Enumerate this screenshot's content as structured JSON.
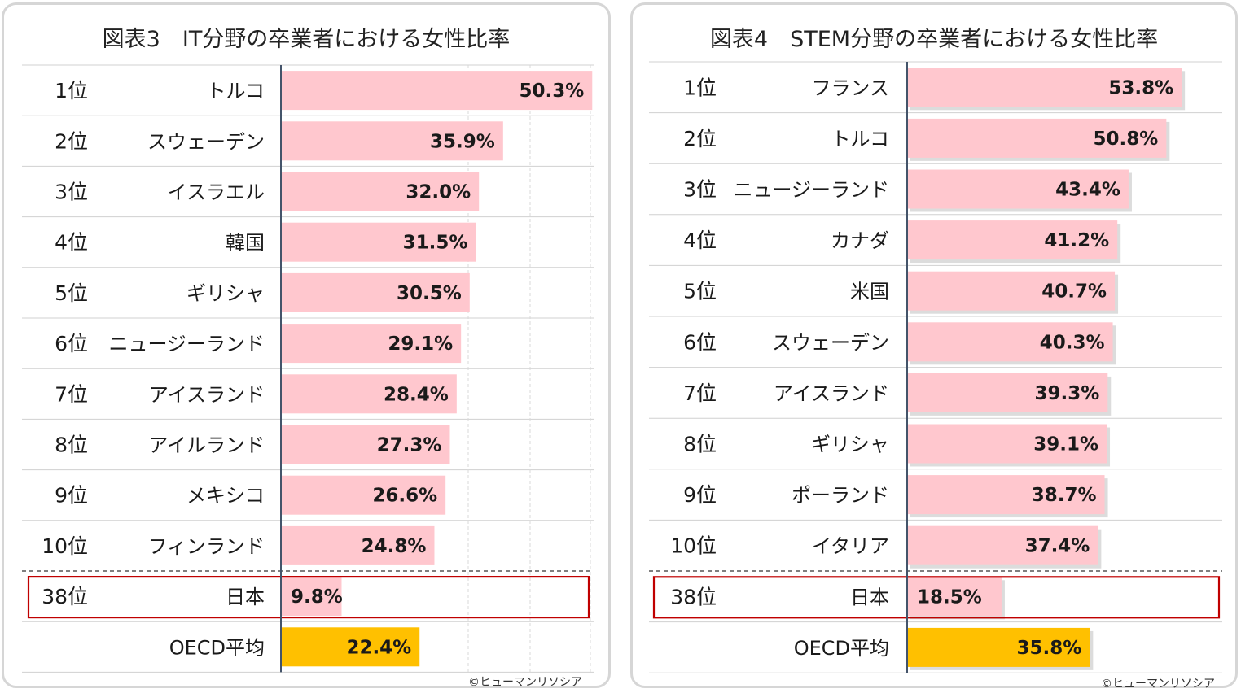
{
  "chart_data": [
    {
      "type": "bar",
      "title": "図表3　IT分野の卒業者における女性比率",
      "ranks": [
        "1位",
        "2位",
        "3位",
        "4位",
        "5位",
        "6位",
        "7位",
        "8位",
        "9位",
        "10位",
        "38位",
        ""
      ],
      "categories": [
        "トルコ",
        "スウェーデン",
        "イスラエル",
        "韓国",
        "ギリシャ",
        "ニュージーランド",
        "アイスランド",
        "アイルランド",
        "メキシコ",
        "フィンランド",
        "日本",
        "OECD平均"
      ],
      "values": [
        50.3,
        35.9,
        32.0,
        31.5,
        30.5,
        29.1,
        28.4,
        27.3,
        26.6,
        24.8,
        9.8,
        22.4
      ],
      "labels": [
        "50.3%",
        "35.9%",
        "32.0%",
        "31.5%",
        "30.5%",
        "29.1%",
        "28.4%",
        "27.3%",
        "26.6%",
        "24.8%",
        "9.8%",
        "22.4%"
      ],
      "xlim": [
        0,
        50
      ],
      "grid": true,
      "highlight_category": "日本",
      "average_category": "OECD平均",
      "credit": "©ヒューマンリソシア"
    },
    {
      "type": "bar",
      "title": "図表4　STEM分野の卒業者における女性比率",
      "ranks": [
        "1位",
        "2位",
        "3位",
        "4位",
        "5位",
        "6位",
        "7位",
        "8位",
        "9位",
        "10位",
        "38位",
        ""
      ],
      "categories": [
        "フランス",
        "トルコ",
        "ニュージーランド",
        "カナダ",
        "米国",
        "スウェーデン",
        "アイスランド",
        "ギリシャ",
        "ポーランド",
        "イタリア",
        "日本",
        "OECD平均"
      ],
      "values": [
        53.8,
        50.8,
        43.4,
        41.2,
        40.7,
        40.3,
        39.3,
        39.1,
        38.7,
        37.4,
        18.5,
        35.8
      ],
      "labels": [
        "53.8%",
        "50.8%",
        "43.4%",
        "41.2%",
        "40.7%",
        "40.3%",
        "39.3%",
        "39.1%",
        "38.7%",
        "37.4%",
        "18.5%",
        "35.8%"
      ],
      "xlim": [
        0,
        60
      ],
      "grid": false,
      "highlight_category": "日本",
      "average_category": "OECD平均",
      "credit": "©ヒューマンリソシア"
    }
  ],
  "colors": {
    "bar": "#ffc7ce",
    "average_bar": "#ffc000",
    "highlight_border": "#c00000",
    "axis": "#44546a",
    "row_line": "#d0d0d0",
    "grid_line": "#d9d9d9"
  }
}
